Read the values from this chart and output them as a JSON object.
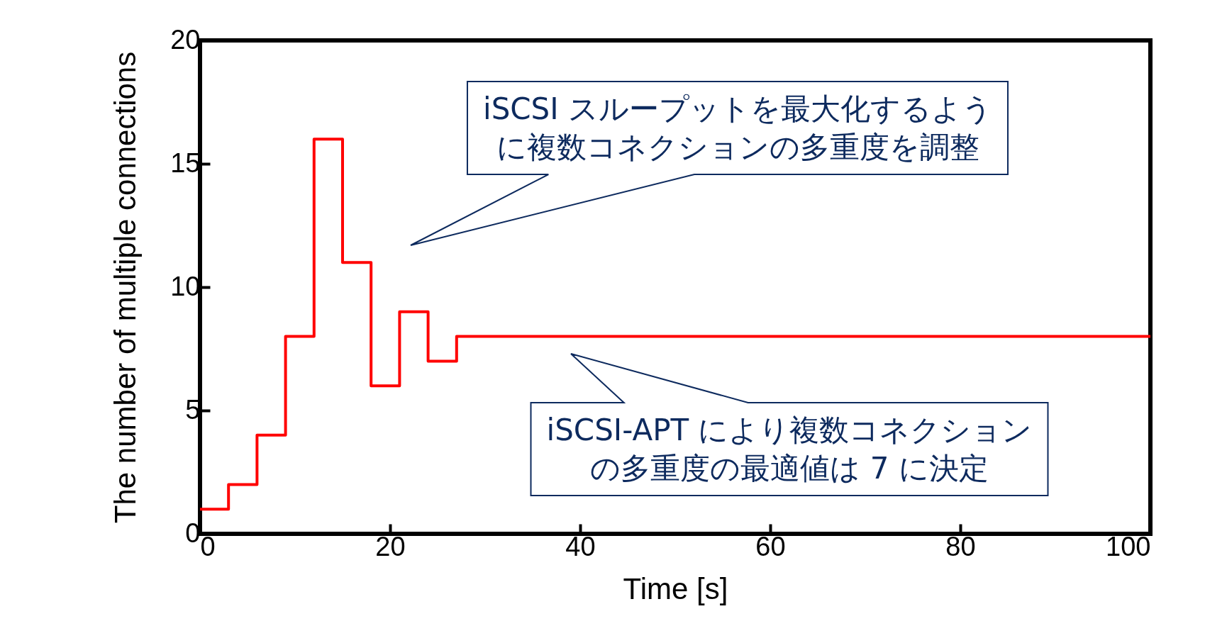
{
  "chart_data": {
    "type": "step",
    "xlabel": "Time [s]",
    "ylabel": "The number of multiple connections",
    "x": [
      0,
      3,
      6,
      9,
      12,
      15,
      18,
      21,
      24,
      27,
      100
    ],
    "series": [
      {
        "color": "#ff0000",
        "values": [
          1,
          2,
          4,
          8,
          16,
          11,
          6,
          9,
          7,
          8,
          8
        ]
      }
    ],
    "xlim": [
      0,
      100
    ],
    "xticks": [
      0,
      20,
      40,
      60,
      80,
      100
    ],
    "ylim": [
      0,
      20
    ],
    "yticks": [
      0,
      5,
      10,
      15,
      20
    ],
    "grid": false,
    "marker": "none",
    "line_style": "solid",
    "annotations": [
      "iSCSI スループットを最大化するように複数コネクションの多重度を調整",
      "iSCSI-APT により複数コネクションの多重度の最適値は 7 に決定"
    ]
  }
}
